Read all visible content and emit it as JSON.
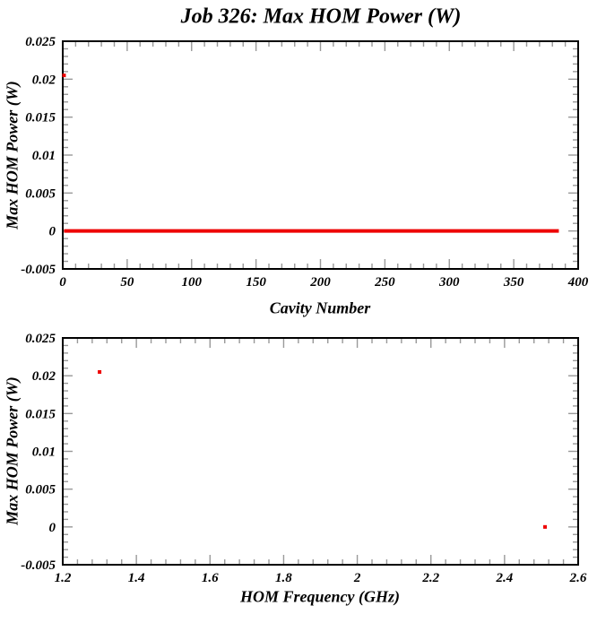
{
  "colors": {
    "accent": "#EE0000",
    "axis": "#000000",
    "tick": "#999999",
    "text": "#000000",
    "background": "#FFFFFF"
  },
  "chart_data": [
    {
      "type": "scatter",
      "title": "Job 326: Max HOM Power (W)",
      "xlabel": "Cavity Number",
      "ylabel": "Max HOM Power (W)",
      "xlim": [
        0,
        400
      ],
      "ylim": [
        -0.005,
        0.025
      ],
      "grid": false,
      "legend": "none",
      "x_major_ticks": [
        0,
        50,
        100,
        150,
        200,
        250,
        300,
        350,
        400
      ],
      "x_tick_labels": [
        "0",
        "50",
        "100",
        "150",
        "200",
        "250",
        "300",
        "350",
        "400"
      ],
      "x_minor_per_major": 4,
      "y_major_ticks": [
        -0.005,
        0,
        0.005,
        0.01,
        0.015,
        0.02,
        0.025
      ],
      "y_tick_labels": [
        "-0.005",
        "0",
        "0.005",
        "0.01",
        "0.015",
        "0.02",
        "0.025"
      ],
      "y_minor_per_major": 4,
      "series": [
        {
          "name": "max-power-vs-cavity-baseline",
          "type": "line",
          "color": "#EE0000",
          "stroke_width": 4,
          "points": [
            [
              1,
              0
            ],
            [
              385,
              0
            ]
          ]
        },
        {
          "name": "max-power-vs-cavity-peak",
          "type": "points",
          "color": "#EE0000",
          "marker_size": 4,
          "points": [
            [
              1,
              0.0205
            ]
          ]
        }
      ]
    },
    {
      "type": "scatter",
      "title": "",
      "xlabel": "HOM Frequency (GHz)",
      "ylabel": "Max HOM Power (W)",
      "xlim": [
        1.2,
        2.6
      ],
      "ylim": [
        -0.005,
        0.025
      ],
      "grid": false,
      "legend": "none",
      "x_major_ticks": [
        1.2,
        1.4,
        1.6,
        1.8,
        2.0,
        2.2,
        2.4,
        2.6
      ],
      "x_tick_labels": [
        "1.2",
        "1.4",
        "1.6",
        "1.8",
        "2",
        "2.2",
        "2.4",
        "2.6"
      ],
      "x_minor_per_major": 4,
      "y_major_ticks": [
        -0.005,
        0,
        0.005,
        0.01,
        0.015,
        0.02,
        0.025
      ],
      "y_tick_labels": [
        "-0.005",
        "0",
        "0.005",
        "0.01",
        "0.015",
        "0.02",
        "0.025"
      ],
      "y_minor_per_major": 4,
      "series": [
        {
          "name": "max-power-vs-frequency-points",
          "type": "points",
          "color": "#EE0000",
          "marker_size": 4,
          "points": [
            [
              1.3,
              0.0205
            ],
            [
              2.51,
              0
            ]
          ]
        }
      ]
    }
  ]
}
